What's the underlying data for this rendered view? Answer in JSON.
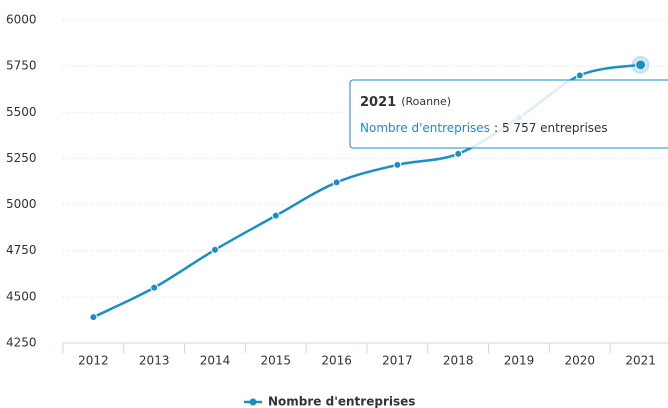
{
  "chart_data": {
    "type": "line",
    "categories": [
      "2012",
      "2013",
      "2014",
      "2015",
      "2016",
      "2017",
      "2018",
      "2019",
      "2020",
      "2021"
    ],
    "series": [
      {
        "name": "Nombre d'entreprises",
        "color": "#1a8fc4",
        "values": [
          4390,
          4550,
          4755,
          4940,
          5120,
          5215,
          5275,
          5470,
          5700,
          5757
        ],
        "value_labels": [
          null,
          null,
          null,
          null,
          null,
          null,
          null,
          null,
          null,
          "5 757 entreprises"
        ]
      }
    ],
    "ylim": [
      4250,
      6000
    ],
    "yticks": [
      4250,
      4500,
      4750,
      5000,
      5250,
      5500,
      5750,
      6000
    ],
    "grid": true,
    "legend": "bottom",
    "tooltip": {
      "context": "(Roanne)",
      "separator": ":"
    }
  }
}
